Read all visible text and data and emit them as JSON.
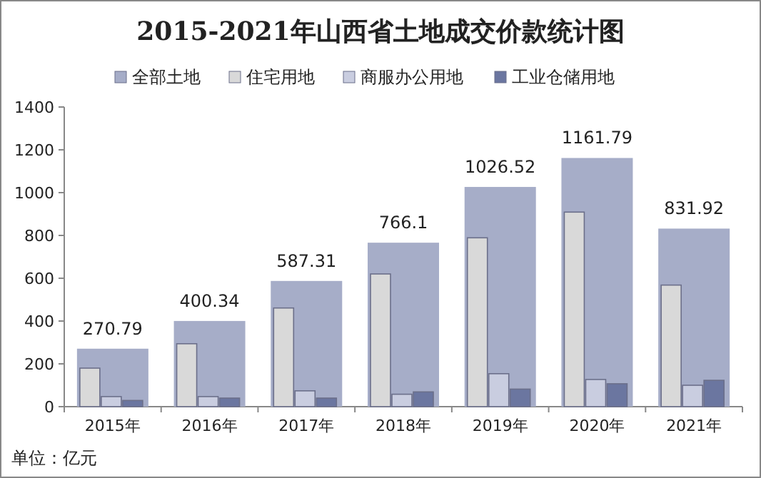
{
  "chart_data": {
    "type": "bar",
    "title": "2015-2021年山西省土地成交价款统计图",
    "categories": [
      "2015年",
      "2016年",
      "2017年",
      "2018年",
      "2019年",
      "2020年",
      "2021年"
    ],
    "series": [
      {
        "name": "全部土地",
        "color": "#a6adc8",
        "values": [
          270.79,
          400.34,
          587.31,
          766.1,
          1026.52,
          1161.79,
          831.92
        ],
        "value_labels": [
          "270.79",
          "400.34",
          "587.31",
          "766.1",
          "1026.52",
          "1161.79",
          "831.92"
        ]
      },
      {
        "name": "住宅用地",
        "color": "#d9d9d9",
        "values": [
          180,
          294,
          461,
          620,
          789,
          909,
          568
        ]
      },
      {
        "name": "商服办公用地",
        "color": "#c9cde0",
        "values": [
          47,
          47,
          74,
          58,
          154,
          127,
          100
        ]
      },
      {
        "name": "工业仓储用地",
        "color": "#6b76a0",
        "values": [
          29,
          40,
          40,
          69,
          82,
          107,
          123
        ]
      }
    ],
    "ylim": [
      0,
      1400
    ],
    "yticks": [
      0,
      200,
      400,
      600,
      800,
      1000,
      1200,
      1400
    ],
    "grid": false,
    "legend": "top",
    "annotations": [
      "单位：亿元"
    ]
  }
}
